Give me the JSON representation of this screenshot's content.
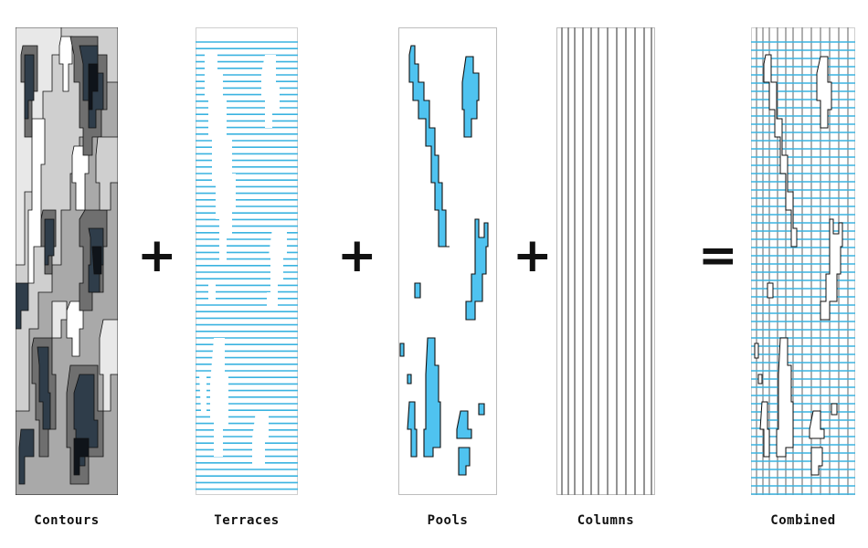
{
  "panels": [
    {
      "label": "Contours"
    },
    {
      "label": "Terraces"
    },
    {
      "label": "Pools"
    },
    {
      "label": "Columns"
    },
    {
      "label": "Combined"
    }
  ],
  "operators": [
    "+",
    "+",
    "+",
    "="
  ],
  "colors": {
    "water": "#4fc3f0",
    "terrace_line": "#3ab3e0",
    "outline": "#111111",
    "column_line": "#7a7a7a"
  }
}
